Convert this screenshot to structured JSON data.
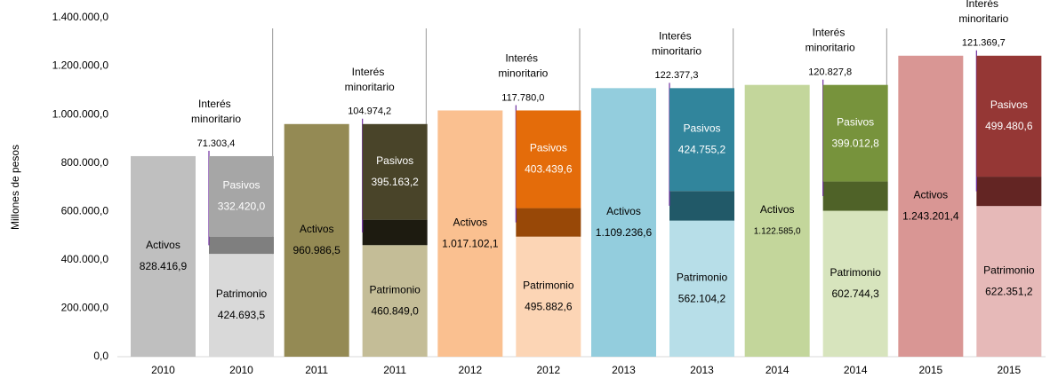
{
  "chart_data": {
    "type": "bar",
    "stacked": true,
    "y_label": "Millones de pesos",
    "categories": [
      "2010",
      "2010",
      "2011",
      "2011",
      "2012",
      "2012",
      "2013",
      "2013",
      "2014",
      "2014",
      "2015",
      "2015"
    ],
    "ylim": [
      0,
      1400000
    ],
    "yticks": [
      {
        "value": 0,
        "label": "0,0"
      },
      {
        "value": 200000,
        "label": "200.000,0"
      },
      {
        "value": 400000,
        "label": "400.000,0"
      },
      {
        "value": 600000,
        "label": "600.000,0"
      },
      {
        "value": 800000,
        "label": "800.000,0"
      },
      {
        "value": 1000000,
        "label": "1.000.000,0"
      },
      {
        "value": 1200000,
        "label": "1.200.000,0"
      },
      {
        "value": 1400000,
        "label": "1.400.000,0"
      }
    ],
    "grid": false,
    "series": [
      {
        "name": "Activos",
        "colors": [
          "#bfbfbf",
          null,
          "#948a54",
          null,
          "#fac090",
          null,
          "#93cddd",
          null,
          "#c3d69b",
          null,
          "#d99694",
          null
        ],
        "values": [
          828416.9,
          null,
          960986.5,
          null,
          1017102.1,
          null,
          1109236.6,
          null,
          1122585.0,
          null,
          1243201.4,
          null
        ],
        "value_labels": [
          "828.416,9",
          null,
          "960.986,5",
          null,
          "1.017.102,1",
          null,
          "1.109.236,6",
          null,
          "1.122.585,0",
          null,
          "1.243.201,4",
          null
        ]
      },
      {
        "name": "Patrimonio",
        "colors": [
          null,
          "#d9d9d9",
          null,
          "#c4bd97",
          null,
          "#fcd5b5",
          null,
          "#b7dee8",
          null,
          "#d7e4bd",
          null,
          "#e6b9b8"
        ],
        "values": [
          null,
          424693.5,
          null,
          460849.0,
          null,
          495882.6,
          null,
          562104.2,
          null,
          602744.3,
          null,
          622351.2
        ],
        "value_labels": [
          null,
          "424.693,5",
          null,
          "460.849,0",
          null,
          "495.882,6",
          null,
          "562.104,2",
          null,
          "602.744,3",
          null,
          "622.351,2"
        ]
      },
      {
        "name": "Interés minoritario",
        "colors": [
          null,
          "#7f7f7f",
          null,
          "#1d1b10",
          null,
          "#984807",
          null,
          "#215968",
          null,
          "#4f6228",
          null,
          "#632523"
        ],
        "values": [
          null,
          71303.4,
          null,
          104974.2,
          null,
          117780.0,
          null,
          122377.3,
          null,
          120827.8,
          null,
          121369.7
        ],
        "value_labels": [
          null,
          "71.303,4",
          null,
          "104.974,2",
          null,
          "117.780,0",
          null,
          "122.377,3",
          null,
          "120.827,8",
          null,
          "121.369,7"
        ]
      },
      {
        "name": "Pasivos",
        "colors": [
          null,
          "#a6a6a6",
          null,
          "#494429",
          null,
          "#e46c0a",
          null,
          "#31859c",
          null,
          "#77933c",
          null,
          "#953735"
        ],
        "values": [
          null,
          332420.0,
          null,
          395163.2,
          null,
          403439.6,
          null,
          424755.2,
          null,
          399012.8,
          null,
          499480.6
        ],
        "value_labels": [
          null,
          "332.420,0",
          null,
          "395.163,2",
          null,
          "403.439,6",
          null,
          "424.755,2",
          null,
          "399.012,8",
          null,
          "499.480,6"
        ]
      }
    ]
  }
}
